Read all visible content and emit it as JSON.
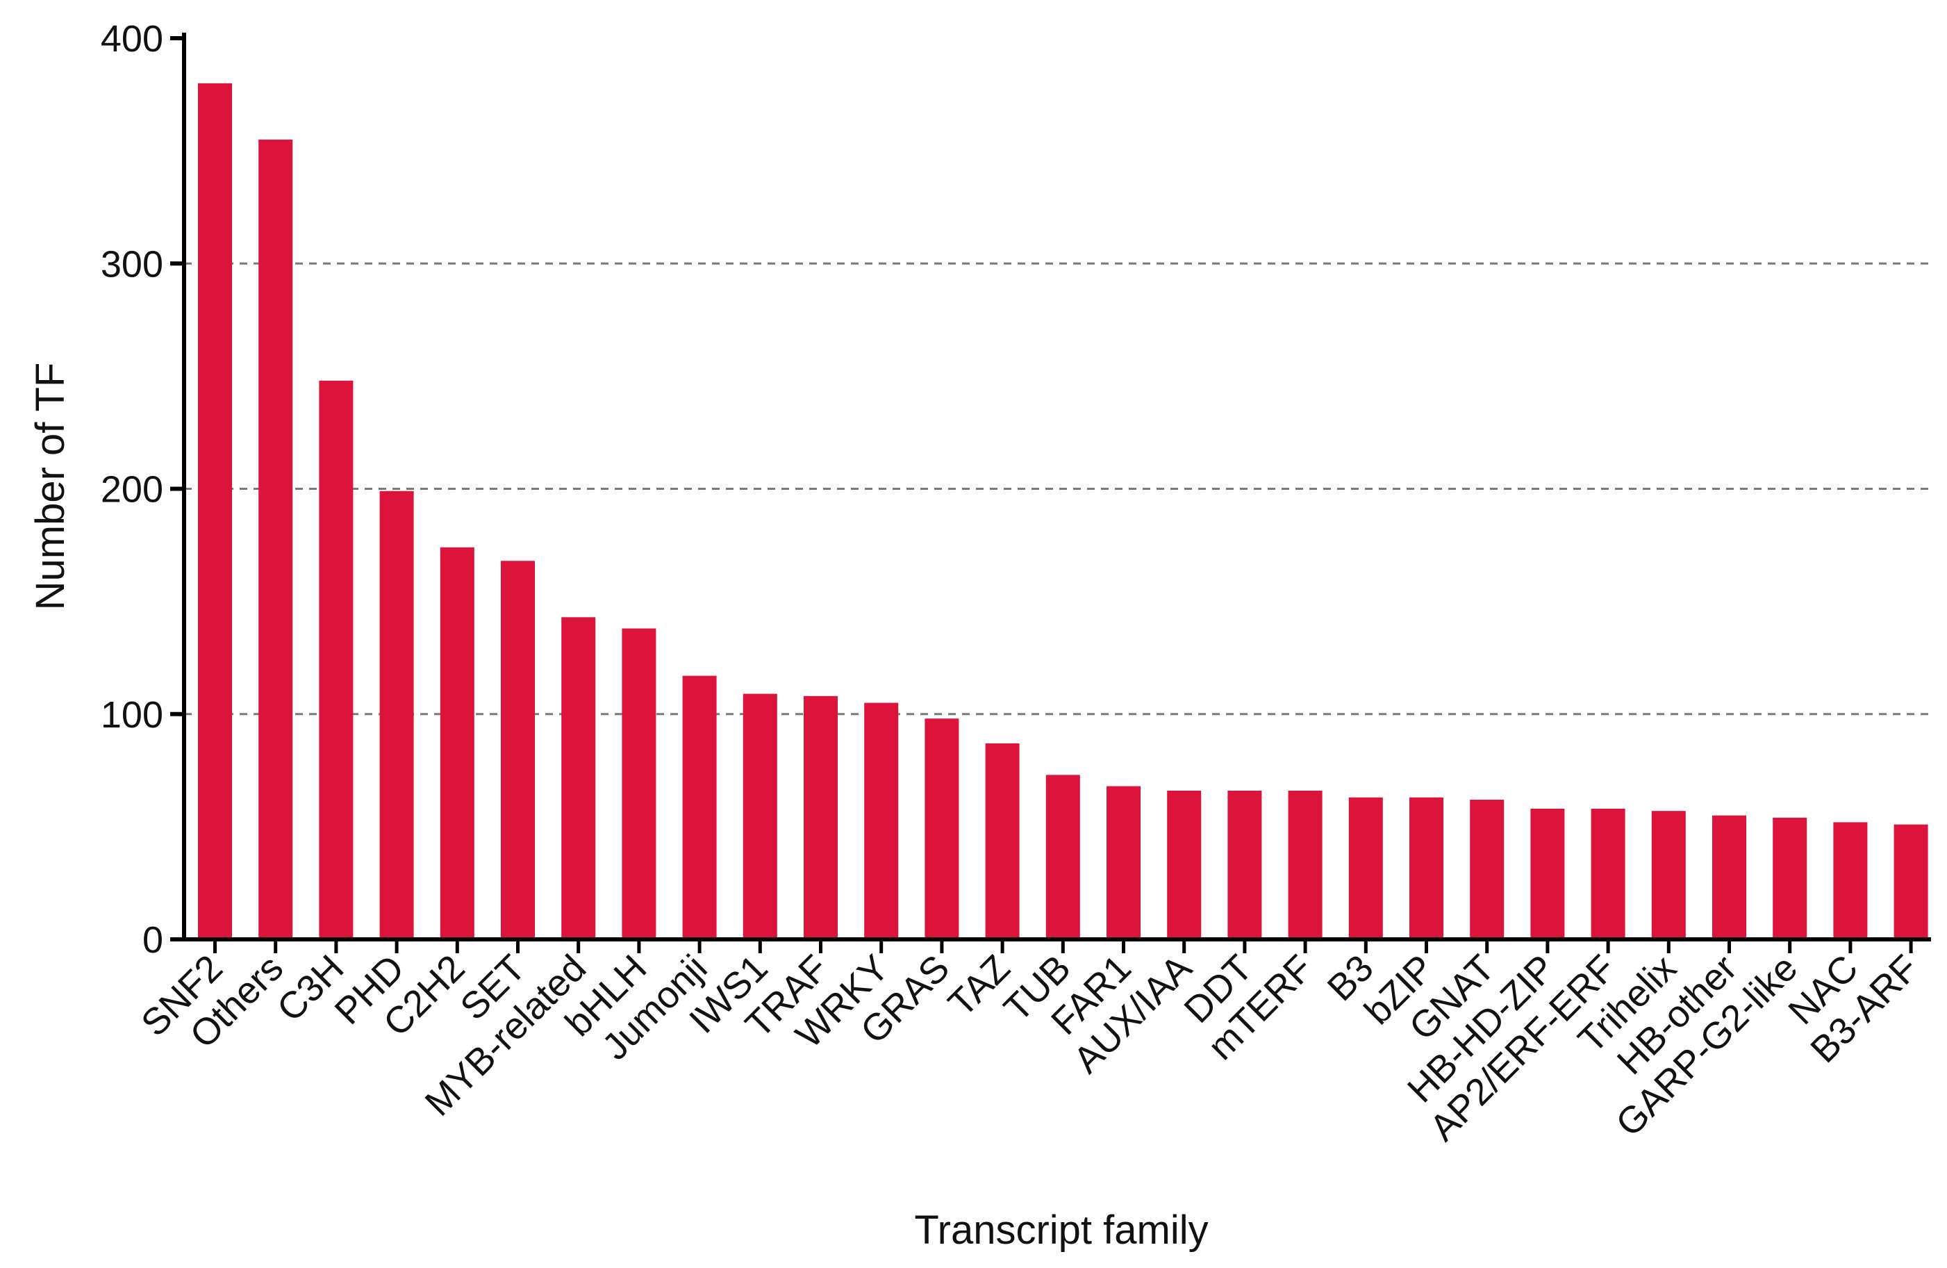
{
  "chart_data": {
    "type": "bar",
    "title": "",
    "xlabel": "Transcript family",
    "ylabel": "Number of TF",
    "ylim": [
      0,
      400
    ],
    "yticks": [
      0,
      100,
      200,
      300,
      400
    ],
    "grid": "horizontal dashed at 100, 200, 300",
    "legend": "none",
    "categories": [
      "SNF2",
      "Others",
      "C3H",
      "PHD",
      "C2H2",
      "SET",
      "MYB-related",
      "bHLH",
      "Jumonji",
      "IWS1",
      "TRAF",
      "WRKY",
      "GRAS",
      "TAZ",
      "TUB",
      "FAR1",
      "AUX/IAA",
      "DDT",
      "mTERF",
      "B3",
      "bZIP",
      "GNAT",
      "HB-HD-ZIP",
      "AP2/ERF-ERF",
      "Trihelix",
      "HB-other",
      "GARP-G2-like",
      "NAC",
      "B3-ARF"
    ],
    "values": [
      380,
      355,
      248,
      199,
      174,
      168,
      143,
      138,
      117,
      109,
      108,
      105,
      98,
      87,
      73,
      68,
      66,
      66,
      66,
      63,
      63,
      62,
      58,
      58,
      57,
      55,
      54,
      52,
      51
    ],
    "colors": {
      "bar": "#dc143c",
      "axis": "#000000",
      "grid": "#7a7a7a"
    }
  }
}
